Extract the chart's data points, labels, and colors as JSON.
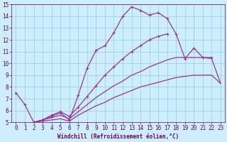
{
  "background_color": "#cceeff",
  "grid_color": "#99cccc",
  "line_color": "#993399",
  "xlabel": "Windchill (Refroidissement éolien,°C)",
  "xlim": [
    -0.5,
    23.5
  ],
  "ylim": [
    5,
    15
  ],
  "xticks": [
    0,
    1,
    2,
    3,
    4,
    5,
    6,
    7,
    8,
    9,
    10,
    11,
    12,
    13,
    14,
    15,
    16,
    17,
    18,
    19,
    20,
    21,
    22,
    23
  ],
  "yticks": [
    5,
    6,
    7,
    8,
    9,
    10,
    11,
    12,
    13,
    14,
    15
  ],
  "curve1_x": [
    0,
    1,
    2,
    3,
    4,
    5,
    6,
    7,
    8,
    9,
    10,
    11,
    12,
    13,
    14,
    15,
    16,
    17,
    18,
    19,
    20,
    21,
    22
  ],
  "curve1_y": [
    7.5,
    6.5,
    5.0,
    5.2,
    5.5,
    5.8,
    5.2,
    7.3,
    9.6,
    11.1,
    11.5,
    12.6,
    14.0,
    14.8,
    14.5,
    14.1,
    14.3,
    13.8,
    12.5,
    10.4,
    11.3,
    10.5,
    10.5
  ],
  "curve2_x": [
    2,
    3,
    4,
    5,
    6,
    7,
    8,
    9,
    10,
    11,
    12,
    13,
    14,
    15,
    16,
    17
  ],
  "curve2_y": [
    5.0,
    5.2,
    5.6,
    5.9,
    5.5,
    6.3,
    7.2,
    8.1,
    9.0,
    9.7,
    10.4,
    11.0,
    11.5,
    12.0,
    12.3,
    12.5
  ],
  "curve3_x": [
    2,
    3,
    4,
    5,
    6,
    7,
    8,
    9,
    10,
    11,
    12,
    13,
    14,
    15,
    16,
    17,
    18,
    19,
    20,
    21,
    22,
    23
  ],
  "curve3_y": [
    5.0,
    5.2,
    5.4,
    5.6,
    5.3,
    5.9,
    6.5,
    7.1,
    7.6,
    8.1,
    8.5,
    9.0,
    9.3,
    9.7,
    10.0,
    10.3,
    10.5,
    10.5,
    10.5,
    10.5,
    10.4,
    8.3
  ],
  "curve4_x": [
    2,
    3,
    4,
    5,
    6,
    7,
    8,
    9,
    10,
    11,
    12,
    13,
    14,
    15,
    16,
    17,
    18,
    19,
    20,
    21,
    22,
    23
  ],
  "curve4_y": [
    5.0,
    5.1,
    5.2,
    5.3,
    5.1,
    5.6,
    6.0,
    6.4,
    6.7,
    7.1,
    7.4,
    7.7,
    8.0,
    8.2,
    8.4,
    8.6,
    8.8,
    8.9,
    9.0,
    9.0,
    9.0,
    8.3
  ],
  "tick_color": "#660066",
  "label_fontsize": 5.5,
  "xlabel_fontsize": 5.5
}
